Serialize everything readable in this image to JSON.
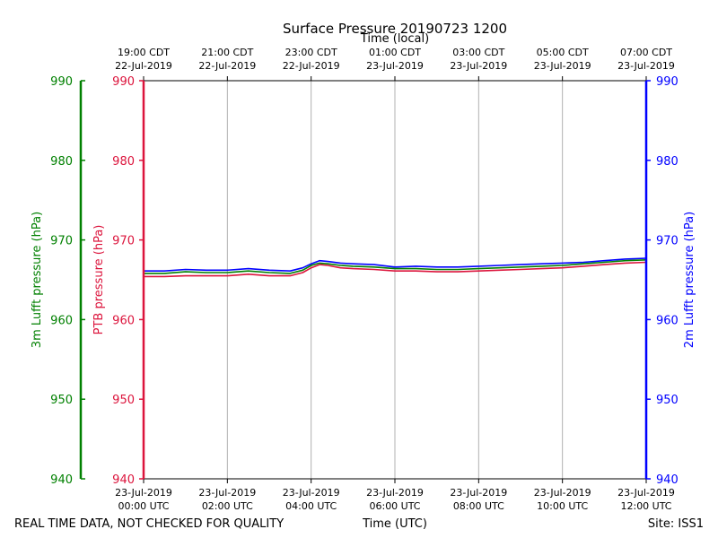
{
  "chart_data": {
    "type": "line",
    "title": "Surface Pressure 20190723 1200",
    "top_axis": {
      "label": "Time (local)",
      "ticks": [
        {
          "line1": "19:00 CDT",
          "line2": "22-Jul-2019"
        },
        {
          "line1": "21:00 CDT",
          "line2": "22-Jul-2019"
        },
        {
          "line1": "23:00 CDT",
          "line2": "22-Jul-2019"
        },
        {
          "line1": "01:00 CDT",
          "line2": "23-Jul-2019"
        },
        {
          "line1": "03:00 CDT",
          "line2": "23-Jul-2019"
        },
        {
          "line1": "05:00 CDT",
          "line2": "23-Jul-2019"
        },
        {
          "line1": "07:00 CDT",
          "line2": "23-Jul-2019"
        }
      ]
    },
    "x_axis": {
      "label": "Time (UTC)",
      "unit": "hours UTC, 23-Jul-2019",
      "range": [
        0,
        12
      ],
      "ticks": [
        {
          "value": 0,
          "line1": "23-Jul-2019",
          "line2": "00:00 UTC"
        },
        {
          "value": 2,
          "line1": "23-Jul-2019",
          "line2": "02:00 UTC"
        },
        {
          "value": 4,
          "line1": "23-Jul-2019",
          "line2": "04:00 UTC"
        },
        {
          "value": 6,
          "line1": "23-Jul-2019",
          "line2": "06:00 UTC"
        },
        {
          "value": 8,
          "line1": "23-Jul-2019",
          "line2": "08:00 UTC"
        },
        {
          "value": 10,
          "line1": "23-Jul-2019",
          "line2": "10:00 UTC"
        },
        {
          "value": 12,
          "line1": "23-Jul-2019",
          "line2": "12:00 UTC"
        }
      ]
    },
    "y_axes": [
      {
        "id": "lufft3m",
        "label": "3m Lufft pressure (hPa)",
        "color": "#008000",
        "range": [
          940,
          990
        ],
        "ticks": [
          "940",
          "950",
          "960",
          "970",
          "980",
          "990"
        ]
      },
      {
        "id": "ptb",
        "label": "PTB pressure (hPa)",
        "color": "#dc143c",
        "range": [
          940,
          990
        ],
        "ticks": [
          "940",
          "950",
          "960",
          "970",
          "980",
          "990"
        ]
      },
      {
        "id": "lufft2m",
        "label": "2m Lufft pressure (hPa)",
        "color": "#0000ff",
        "range": [
          940,
          990
        ],
        "ticks": [
          "940",
          "950",
          "960",
          "970",
          "980",
          "990"
        ]
      }
    ],
    "grid": "vertical",
    "series": [
      {
        "axis": "lufft2m",
        "color": "#0000ff",
        "x": [
          0,
          0.5,
          1,
          1.5,
          2,
          2.5,
          3,
          3.5,
          3.8,
          4,
          4.2,
          4.4,
          4.7,
          5,
          5.5,
          6,
          6.5,
          7,
          7.5,
          8,
          8.5,
          9,
          9.5,
          10,
          10.5,
          11,
          11.5,
          12
        ],
        "y": [
          966.1,
          966.1,
          966.3,
          966.2,
          966.2,
          966.4,
          966.2,
          966.1,
          966.5,
          967.0,
          967.4,
          967.3,
          967.1,
          967.0,
          966.9,
          966.6,
          966.7,
          966.6,
          966.6,
          966.7,
          966.8,
          966.9,
          967.0,
          967.1,
          967.2,
          967.4,
          967.6,
          967.7
        ]
      },
      {
        "axis": "lufft3m",
        "color": "#008000",
        "x": [
          0,
          0.5,
          1,
          1.5,
          2,
          2.5,
          3,
          3.5,
          3.8,
          4,
          4.2,
          4.4,
          4.7,
          5,
          5.5,
          6,
          6.5,
          7,
          7.5,
          8,
          8.5,
          9,
          9.5,
          10,
          10.5,
          11,
          11.5,
          12
        ],
        "y": [
          965.8,
          965.8,
          966.0,
          965.9,
          965.9,
          966.1,
          965.9,
          965.8,
          966.2,
          966.8,
          967.1,
          967.0,
          966.8,
          966.7,
          966.6,
          966.4,
          966.4,
          966.3,
          966.3,
          966.4,
          966.5,
          966.6,
          966.7,
          966.8,
          967.0,
          967.2,
          967.4,
          967.5
        ]
      },
      {
        "axis": "ptb",
        "color": "#dc143c",
        "x": [
          0,
          0.5,
          1,
          1.5,
          2,
          2.5,
          3,
          3.5,
          3.8,
          4,
          4.2,
          4.4,
          4.7,
          5,
          5.5,
          6,
          6.5,
          7,
          7.5,
          8,
          8.5,
          9,
          9.5,
          10,
          10.5,
          11,
          11.5,
          12
        ],
        "y": [
          965.4,
          965.4,
          965.5,
          965.5,
          965.5,
          965.7,
          965.5,
          965.5,
          965.9,
          966.5,
          966.9,
          966.8,
          966.5,
          966.4,
          966.3,
          966.1,
          966.1,
          966.0,
          966.0,
          966.1,
          966.2,
          966.3,
          966.4,
          966.5,
          966.7,
          966.9,
          967.1,
          967.2
        ]
      }
    ]
  },
  "footer": {
    "quality_note": "REAL TIME DATA, NOT CHECKED FOR QUALITY",
    "site": "Site: ISS1"
  }
}
